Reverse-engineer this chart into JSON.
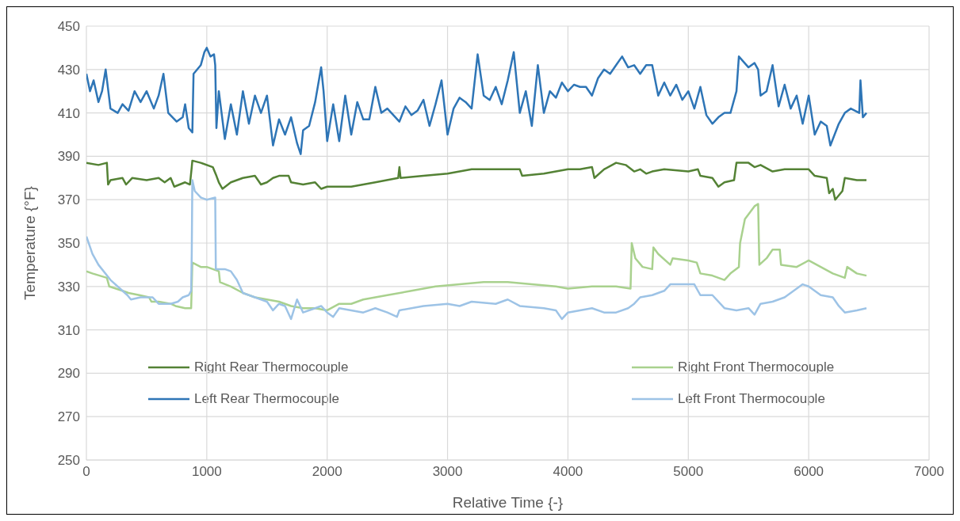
{
  "chart_data": {
    "type": "line",
    "xlabel": "Relative Time {-}",
    "ylabel": "Temperature {°F}",
    "xlim": [
      0,
      7000
    ],
    "xticks": [
      0,
      1000,
      2000,
      3000,
      4000,
      5000,
      6000,
      7000
    ],
    "ylim": [
      250,
      450
    ],
    "yticks": [
      250,
      270,
      290,
      310,
      330,
      350,
      370,
      390,
      410,
      430,
      450
    ],
    "grid": true,
    "legend": "bottom",
    "series": [
      {
        "name": "Right Rear Thermocouple",
        "color": "#548235",
        "x": [
          0,
          100,
          170,
          180,
          200,
          300,
          330,
          380,
          500,
          600,
          650,
          700,
          730,
          820,
          860,
          875,
          880,
          950,
          1050,
          1080,
          1100,
          1130,
          1200,
          1300,
          1400,
          1450,
          1500,
          1550,
          1600,
          1680,
          1700,
          1800,
          1900,
          1950,
          2000,
          2100,
          2200,
          2400,
          2590,
          2600,
          2610,
          2800,
          3000,
          3200,
          3400,
          3600,
          3620,
          3800,
          4000,
          4100,
          4200,
          4220,
          4300,
          4400,
          4480,
          4550,
          4600,
          4650,
          4700,
          4800,
          5000,
          5080,
          5100,
          5200,
          5250,
          5300,
          5380,
          5400,
          5500,
          5550,
          5600,
          5700,
          5800,
          6000,
          6050,
          6150,
          6170,
          6200,
          6220,
          6280,
          6300,
          6400,
          6480
        ],
        "values": [
          387,
          386,
          387,
          377,
          379,
          380,
          377,
          380,
          379,
          380,
          378,
          380,
          376,
          378,
          377,
          385,
          388,
          387,
          385,
          381,
          378,
          375,
          378,
          380,
          381,
          377,
          378,
          380,
          381,
          381,
          378,
          377,
          378,
          375,
          376,
          376,
          376,
          378,
          380,
          385,
          380,
          381,
          382,
          384,
          384,
          384,
          381,
          382,
          384,
          384,
          385,
          380,
          384,
          387,
          386,
          383,
          384,
          382,
          383,
          384,
          383,
          384,
          381,
          380,
          376,
          378,
          379,
          387,
          387,
          385,
          386,
          383,
          384,
          384,
          381,
          380,
          373,
          375,
          370,
          374,
          380,
          379,
          379
        ]
      },
      {
        "name": "Right Front Thermocouple",
        "color": "#a9d18e",
        "x": [
          0,
          50,
          110,
          170,
          190,
          300,
          350,
          440,
          520,
          540,
          600,
          700,
          740,
          820,
          870,
          875,
          880,
          950,
          1000,
          1100,
          1110,
          1200,
          1300,
          1400,
          1500,
          1600,
          1700,
          1800,
          1900,
          2000,
          2100,
          2200,
          2300,
          2400,
          2500,
          2700,
          2900,
          3100,
          3300,
          3500,
          3700,
          3900,
          4000,
          4200,
          4400,
          4520,
          4530,
          4560,
          4620,
          4700,
          4710,
          4750,
          4850,
          4870,
          5000,
          5070,
          5100,
          5200,
          5250,
          5300,
          5350,
          5420,
          5430,
          5470,
          5550,
          5580,
          5590,
          5650,
          5700,
          5760,
          5770,
          5900,
          6000,
          6100,
          6200,
          6300,
          6320,
          6400,
          6480
        ],
        "values": [
          337,
          336,
          335,
          334,
          330,
          328,
          327,
          326,
          325,
          323,
          323,
          322,
          321,
          320,
          320,
          330,
          341,
          339,
          339,
          337,
          332,
          330,
          327,
          325,
          324,
          323,
          321,
          320,
          320,
          319,
          322,
          322,
          324,
          325,
          326,
          328,
          330,
          331,
          332,
          332,
          331,
          330,
          329,
          330,
          330,
          329,
          350,
          343,
          339,
          338,
          348,
          345,
          340,
          343,
          342,
          341,
          336,
          335,
          334,
          333,
          336,
          339,
          350,
          361,
          367,
          368,
          340,
          343,
          347,
          347,
          340,
          339,
          342,
          339,
          336,
          334,
          339,
          336,
          335
        ]
      },
      {
        "name": "Left Rear Thermocouple",
        "color": "#2e75b6",
        "x": [
          0,
          30,
          60,
          100,
          130,
          160,
          200,
          260,
          300,
          350,
          400,
          450,
          500,
          560,
          600,
          640,
          680,
          750,
          800,
          820,
          850,
          880,
          890,
          950,
          980,
          1000,
          1030,
          1060,
          1070,
          1080,
          1100,
          1150,
          1200,
          1250,
          1300,
          1350,
          1400,
          1450,
          1500,
          1550,
          1600,
          1650,
          1700,
          1750,
          1780,
          1800,
          1850,
          1900,
          1950,
          1970,
          2000,
          2050,
          2100,
          2150,
          2200,
          2250,
          2300,
          2350,
          2400,
          2450,
          2500,
          2600,
          2650,
          2700,
          2750,
          2800,
          2850,
          2900,
          2950,
          3000,
          3050,
          3100,
          3150,
          3200,
          3250,
          3300,
          3350,
          3400,
          3450,
          3500,
          3550,
          3600,
          3650,
          3700,
          3750,
          3800,
          3850,
          3900,
          3950,
          4000,
          4050,
          4100,
          4150,
          4200,
          4250,
          4300,
          4350,
          4400,
          4450,
          4500,
          4550,
          4600,
          4650,
          4700,
          4750,
          4800,
          4850,
          4900,
          4950,
          5000,
          5050,
          5100,
          5150,
          5200,
          5250,
          5300,
          5350,
          5400,
          5420,
          5500,
          5550,
          5580,
          5600,
          5650,
          5700,
          5750,
          5800,
          5850,
          5900,
          5950,
          6000,
          6050,
          6100,
          6150,
          6180,
          6250,
          6300,
          6350,
          6420,
          6430,
          6450,
          6480
        ],
        "values": [
          428,
          420,
          425,
          415,
          420,
          430,
          412,
          410,
          414,
          411,
          420,
          415,
          420,
          412,
          418,
          428,
          410,
          406,
          408,
          414,
          403,
          401,
          428,
          432,
          438,
          440,
          436,
          437,
          432,
          403,
          420,
          398,
          414,
          400,
          420,
          405,
          418,
          410,
          418,
          395,
          407,
          400,
          408,
          396,
          391,
          402,
          404,
          415,
          431,
          420,
          397,
          414,
          397,
          418,
          400,
          415,
          407,
          407,
          422,
          410,
          412,
          406,
          413,
          409,
          411,
          416,
          404,
          414,
          425,
          400,
          412,
          417,
          415,
          412,
          437,
          418,
          416,
          422,
          414,
          425,
          438,
          410,
          420,
          404,
          432,
          410,
          420,
          417,
          424,
          420,
          423,
          422,
          422,
          418,
          426,
          430,
          428,
          432,
          436,
          431,
          432,
          428,
          432,
          432,
          418,
          424,
          418,
          423,
          416,
          420,
          412,
          422,
          409,
          405,
          408,
          410,
          410,
          420,
          436,
          431,
          433,
          430,
          418,
          420,
          432,
          413,
          423,
          412,
          418,
          405,
          418,
          400,
          406,
          404,
          395,
          405,
          410,
          412,
          410,
          425,
          408,
          410
        ]
      },
      {
        "name": "Left Front Thermocouple",
        "color": "#9dc3e6",
        "x": [
          0,
          50,
          100,
          200,
          300,
          340,
          370,
          450,
          550,
          600,
          700,
          760,
          800,
          850,
          870,
          875,
          880,
          900,
          950,
          1000,
          1070,
          1075,
          1150,
          1200,
          1250,
          1300,
          1400,
          1500,
          1550,
          1600,
          1650,
          1700,
          1750,
          1800,
          1900,
          1950,
          2000,
          2050,
          2100,
          2200,
          2300,
          2400,
          2500,
          2580,
          2600,
          2800,
          3000,
          3100,
          3200,
          3400,
          3500,
          3600,
          3800,
          3900,
          3950,
          4000,
          4200,
          4300,
          4400,
          4500,
          4550,
          4600,
          4700,
          4800,
          4850,
          5000,
          5050,
          5100,
          5200,
          5300,
          5400,
          5500,
          5550,
          5600,
          5700,
          5800,
          5900,
          5950,
          6000,
          6100,
          6200,
          6250,
          6300,
          6400,
          6480
        ],
        "values": [
          353,
          345,
          340,
          333,
          328,
          326,
          324,
          325,
          325,
          322,
          322,
          323,
          325,
          326,
          328,
          345,
          379,
          374,
          371,
          370,
          371,
          338,
          338,
          337,
          333,
          327,
          325,
          323,
          319,
          322,
          321,
          315,
          324,
          318,
          320,
          321,
          318,
          316,
          320,
          319,
          318,
          320,
          318,
          316,
          319,
          321,
          322,
          321,
          323,
          322,
          324,
          321,
          320,
          319,
          315,
          318,
          320,
          318,
          318,
          320,
          322,
          325,
          326,
          328,
          331,
          331,
          331,
          326,
          326,
          320,
          319,
          320,
          317,
          322,
          323,
          325,
          329,
          331,
          330,
          326,
          325,
          321,
          318,
          319,
          320
        ]
      }
    ]
  }
}
